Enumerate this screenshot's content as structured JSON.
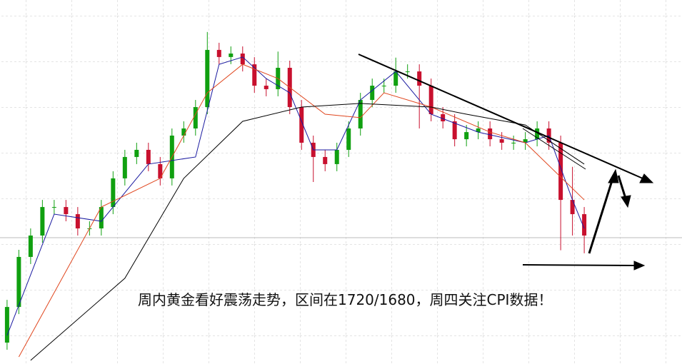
{
  "chart_data": {
    "type": "candlestick",
    "annotation": "周内黄金看好震荡走势，区间在1720/1680，周四关注CPI数据！",
    "ylim": [
      1660,
      1900
    ],
    "xlim": [
      -0.6,
      57.3
    ],
    "up_color": "#10a010",
    "down_color": "#c8102e",
    "open": [
      1674.1,
      1697.6,
      1730.6,
      1744.7,
      1763.5,
      1763.5,
      1758.8,
      1749.4,
      1749.4,
      1763.5,
      1782.4,
      1796.5,
      1801.2,
      1791.8,
      1782.4,
      1810.6,
      1815.3,
      1829.4,
      1867.1,
      1862.4,
      1864.7,
      1857.6,
      1843.5,
      1841.2,
      1855.3,
      1829.4,
      1805.9,
      1796.5,
      1791.8,
      1801.2,
      1815.3,
      1834.1,
      1843.5,
      1843.5,
      1852.9,
      1852.9,
      1843.5,
      1824.7,
      1820.0,
      1808.2,
      1812.9,
      1815.3,
      1808.2,
      1805.9,
      1805.9,
      1808.2,
      1815.3,
      1805.9,
      1768.2,
      1758.8
    ],
    "high": [
      1702.3,
      1735.3,
      1749.4,
      1768.2,
      1768.2,
      1768.2,
      1763.5,
      1754.1,
      1768.2,
      1787.1,
      1801.2,
      1805.9,
      1805.9,
      1796.5,
      1815.3,
      1820.0,
      1834.1,
      1878.9,
      1871.8,
      1869.4,
      1869.4,
      1862.3,
      1848.2,
      1866.0,
      1860.0,
      1834.1,
      1810.6,
      1801.2,
      1805.9,
      1820.0,
      1838.8,
      1848.2,
      1848.2,
      1862.0,
      1857.6,
      1857.6,
      1848.2,
      1829.4,
      1824.7,
      1817.6,
      1820.0,
      1820.0,
      1812.9,
      1810.6,
      1812.9,
      1820.0,
      1820.0,
      1810.6,
      1790.0,
      1763.5
    ],
    "low": [
      1669.4,
      1692.9,
      1725.9,
      1740.0,
      1758.8,
      1754.1,
      1744.7,
      1744.7,
      1744.7,
      1758.8,
      1777.7,
      1791.8,
      1787.1,
      1777.7,
      1777.7,
      1805.9,
      1810.6,
      1824.7,
      1857.7,
      1857.7,
      1852.9,
      1838.8,
      1836.5,
      1836.5,
      1824.7,
      1801.2,
      1780.0,
      1787.1,
      1787.1,
      1796.5,
      1810.6,
      1829.4,
      1838.8,
      1838.8,
      1848.2,
      1815.3,
      1820.0,
      1815.3,
      1803.5,
      1803.5,
      1808.2,
      1803.5,
      1801.2,
      1801.2,
      1801.2,
      1803.5,
      1801.2,
      1735.0,
      1744.7,
      1733.0
    ],
    "close": [
      1697.6,
      1730.6,
      1744.7,
      1763.5,
      1763.5,
      1758.8,
      1749.4,
      1749.4,
      1763.5,
      1782.4,
      1796.5,
      1801.2,
      1791.8,
      1782.4,
      1810.6,
      1815.3,
      1829.4,
      1867.1,
      1862.4,
      1864.7,
      1857.6,
      1843.5,
      1841.2,
      1855.3,
      1829.4,
      1805.9,
      1796.5,
      1791.8,
      1801.2,
      1815.3,
      1834.1,
      1843.5,
      1843.5,
      1852.9,
      1852.9,
      1843.5,
      1824.7,
      1820.0,
      1808.2,
      1812.9,
      1815.3,
      1808.2,
      1805.9,
      1805.9,
      1808.2,
      1815.3,
      1805.9,
      1768.2,
      1758.8,
      1744.7
    ],
    "lines": [
      {
        "color": "#1a1aa0",
        "x": [
          0,
          4,
          8,
          12,
          16,
          18,
          20,
          22,
          24,
          26,
          28,
          30,
          33,
          36,
          40,
          44,
          46,
          48,
          49
        ],
        "values": [
          1678.8,
          1758.8,
          1754.1,
          1791.8,
          1796.5,
          1857.6,
          1862.4,
          1848.2,
          1838.8,
          1801.2,
          1801.2,
          1834.1,
          1852.9,
          1824.7,
          1812.9,
          1805.9,
          1810.6,
          1768.2,
          1749.4
        ]
      },
      {
        "color": "#e0461e",
        "x": [
          1,
          8,
          13,
          17,
          20,
          23,
          27,
          30,
          32,
          36,
          41,
          44,
          49
        ],
        "values": [
          1664.7,
          1763.5,
          1782.4,
          1838.8,
          1857.6,
          1848.2,
          1824.7,
          1822.4,
          1838.8,
          1829.4,
          1812.9,
          1805.9,
          1768.2
        ]
      },
      {
        "color": "#000000",
        "x": [
          2,
          10,
          15,
          20,
          25,
          30,
          36,
          39,
          44,
          49
        ],
        "values": [
          1662.4,
          1716.5,
          1782.4,
          1820.0,
          1829.4,
          1831.8,
          1829.4,
          1824.7,
          1817.6,
          1791.8
        ]
      }
    ]
  }
}
